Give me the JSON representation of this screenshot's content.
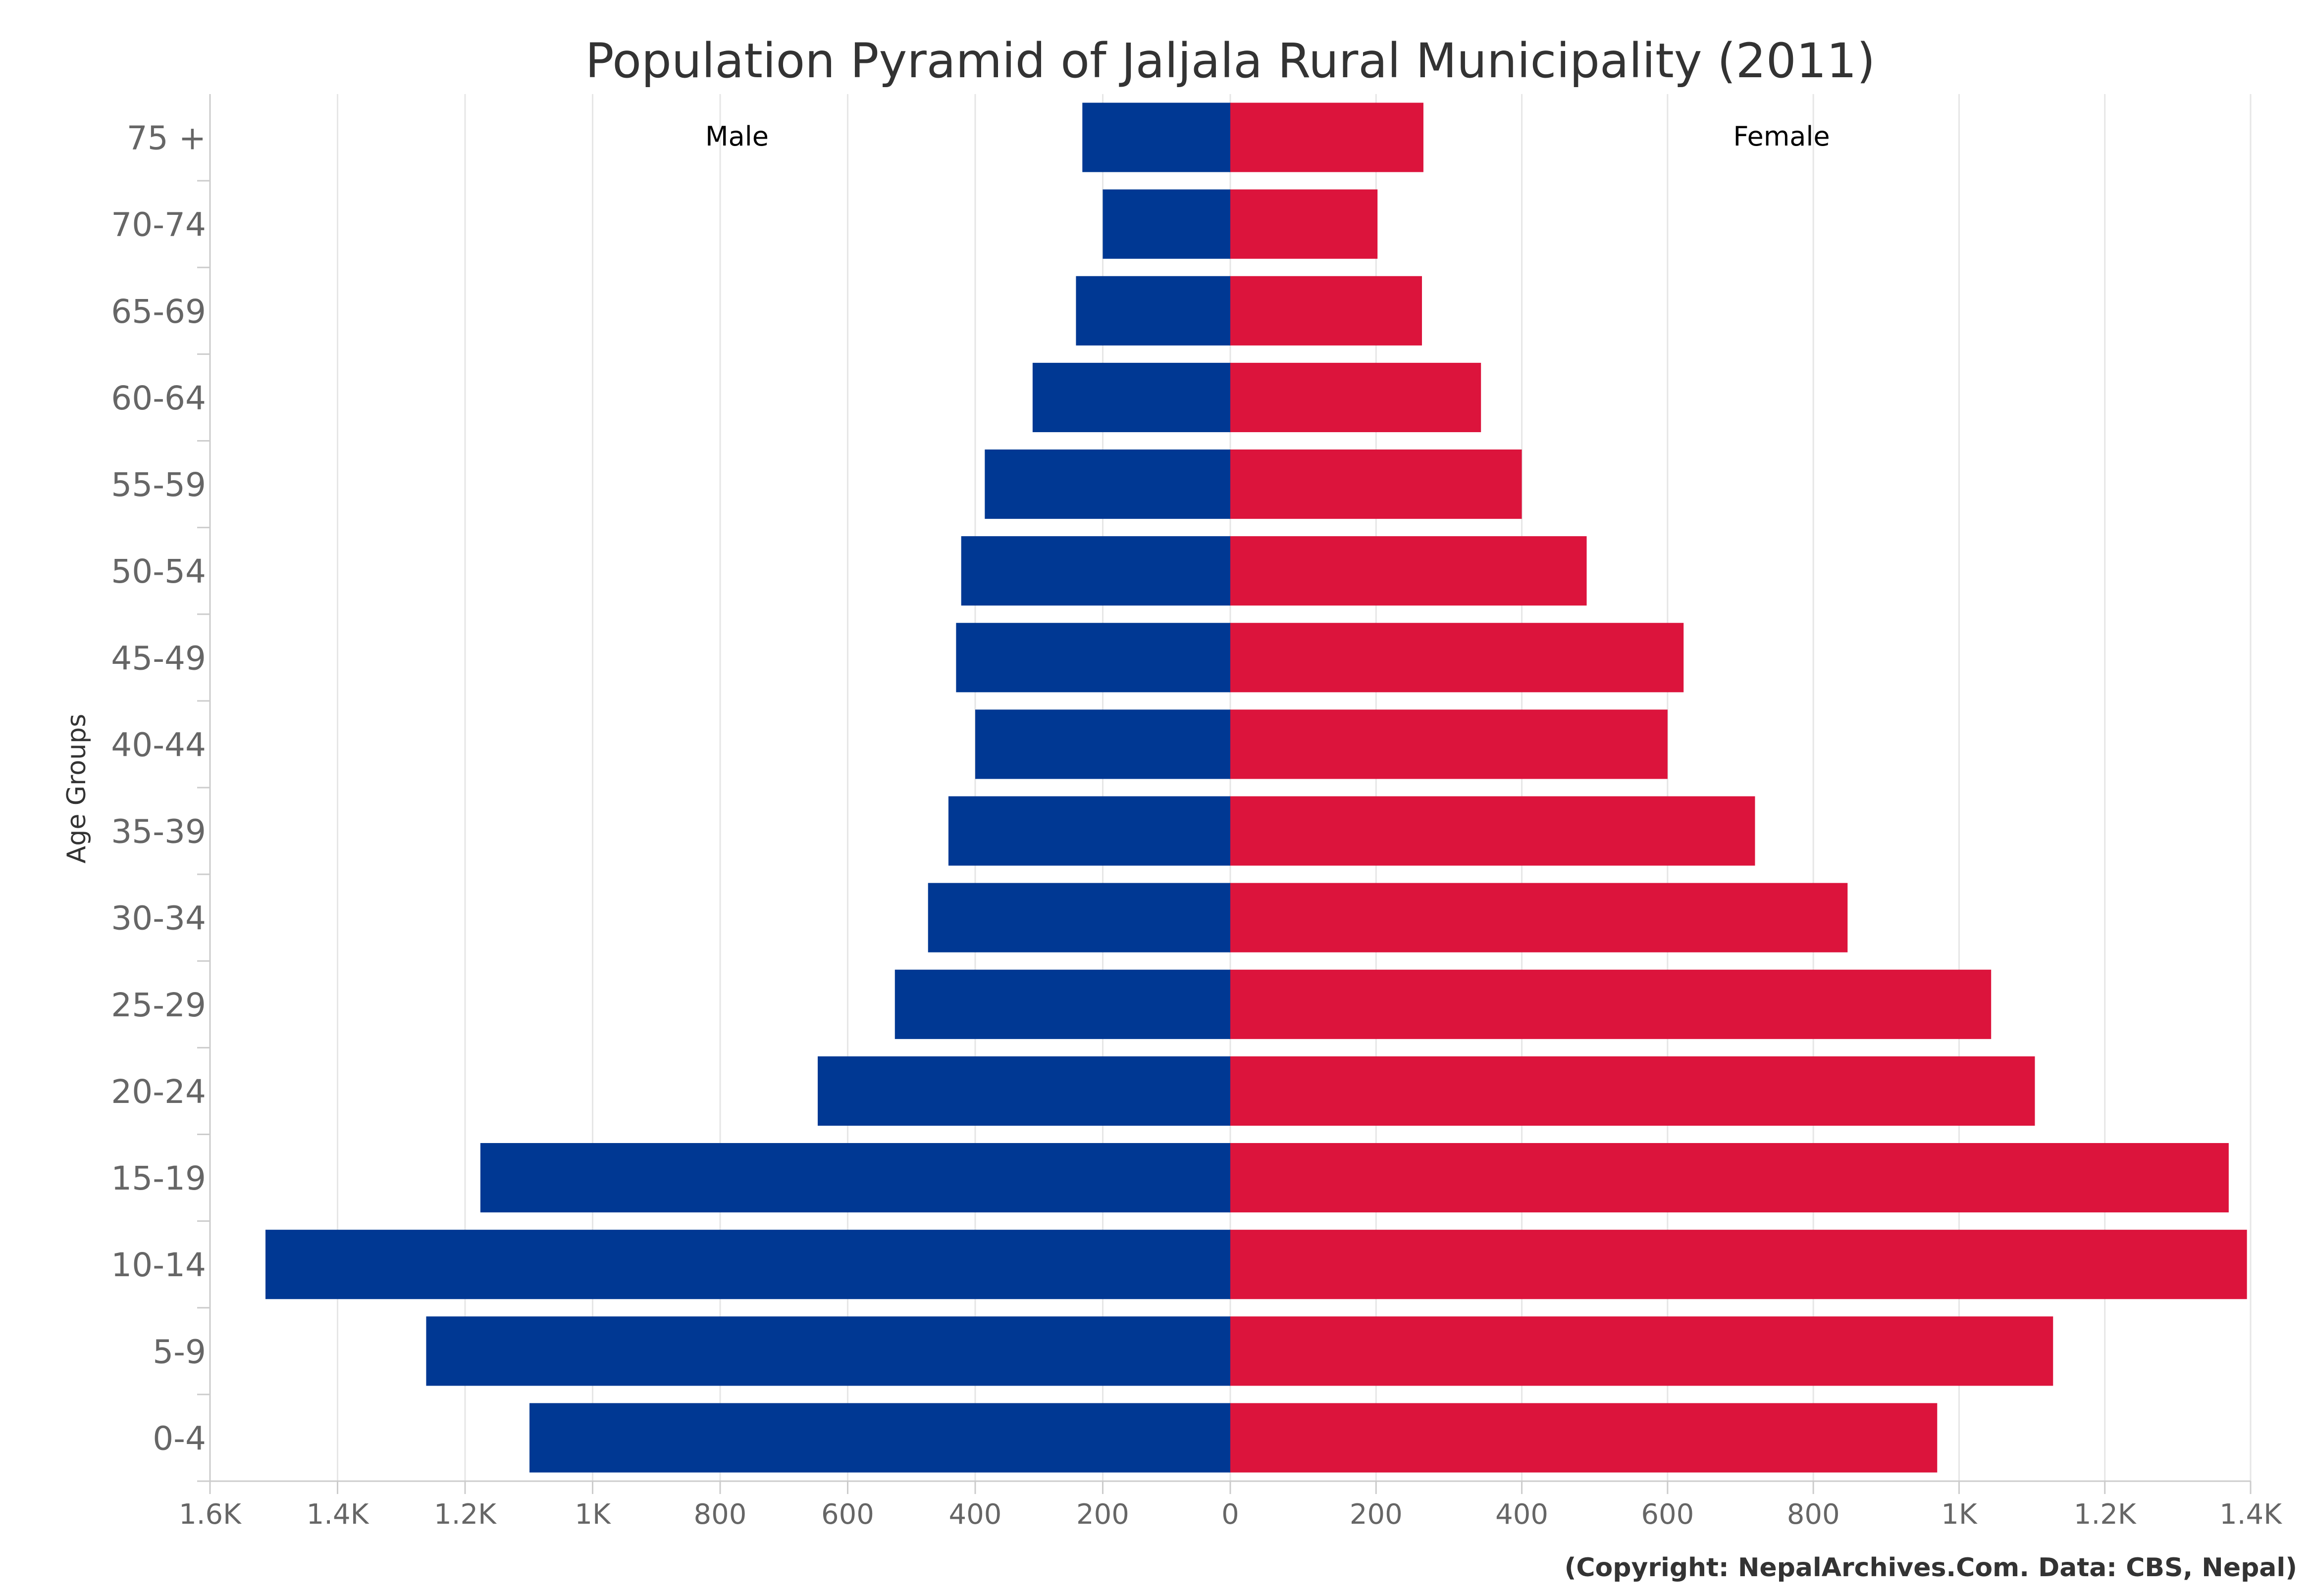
{
  "chart_data": {
    "type": "bar",
    "orientation": "horizontal-pyramid",
    "title": "Population Pyramid of Jaljala Rural Municipality (2011)",
    "ylabel": "Age Groups",
    "categories": [
      "75 +",
      "70-74",
      "65-69",
      "60-64",
      "55-59",
      "50-54",
      "45-49",
      "40-44",
      "35-39",
      "30-34",
      "25-29",
      "20-24",
      "15-19",
      "10-14",
      "5-9",
      "0-4"
    ],
    "series": [
      {
        "name": "Male",
        "color": "#003893",
        "values": [
          232,
          200,
          242,
          310,
          385,
          422,
          430,
          400,
          442,
          474,
          526,
          647,
          1176,
          1513,
          1261,
          1099
        ]
      },
      {
        "name": "Female",
        "color": "#DC143C",
        "values": [
          265,
          202,
          263,
          344,
          400,
          489,
          622,
          600,
          720,
          847,
          1044,
          1104,
          1370,
          1395,
          1129,
          970
        ]
      }
    ],
    "xlim_left": [
      1600,
      0
    ],
    "xlim_right": [
      0,
      1400
    ],
    "x_ticks_left": [
      "1.6K",
      "1.4K",
      "1.2K",
      "1K",
      "800",
      "600",
      "400",
      "200"
    ],
    "x_ticks_right": [
      "0",
      "200",
      "400",
      "600",
      "800",
      "1K",
      "1.2K",
      "1.4K"
    ],
    "grid": true,
    "credit": "(Copyright: NepalArchives.Com. Data: CBS, Nepal)"
  }
}
